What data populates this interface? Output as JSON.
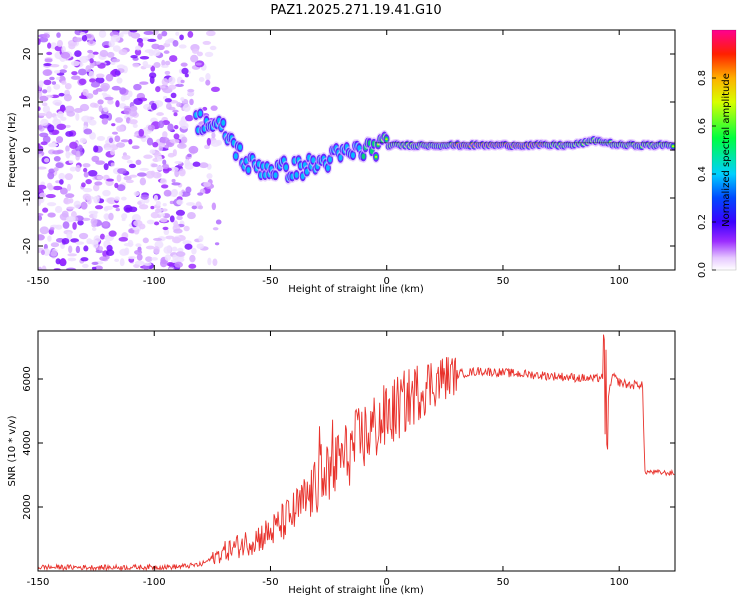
{
  "title": "PAZ1.2025.271.19.41.G10",
  "chart_data": [
    {
      "type": "heatmap",
      "name": "spectrogram",
      "xlabel": "Height of straight line (km)",
      "ylabel": "Frequency (Hz)",
      "xlim": [
        -150,
        124
      ],
      "ylim": [
        -25,
        25
      ],
      "xticks": [
        -150,
        -100,
        -50,
        0,
        50,
        100
      ],
      "yticks": [
        -20,
        -10,
        0,
        10,
        20
      ],
      "colorbar": {
        "label": "Normalized spectral amplitude",
        "range": [
          0,
          1
        ],
        "ticks": [
          0.0,
          0.2,
          0.4,
          0.6,
          0.8
        ],
        "colormap": "rainbow",
        "stops": [
          "#ffffff",
          "#e6c8ff",
          "#9b2cff",
          "#3a00ff",
          "#0048ff",
          "#00d0ff",
          "#00ff40",
          "#d8ff00",
          "#ffb000",
          "#ff2000",
          "#ff0090"
        ]
      },
      "ridge": {
        "description_points_x": [
          -80,
          -70,
          -60,
          -50,
          -40,
          -30,
          -20,
          -10,
          0,
          10,
          20,
          30,
          40,
          50,
          60,
          70,
          80,
          90,
          100,
          110,
          124
        ],
        "description_points_y": [
          6,
          4,
          -3,
          -4,
          -4,
          -3,
          -1,
          0,
          1,
          1,
          1,
          1,
          1,
          1,
          1,
          1,
          1,
          2,
          1,
          1,
          1
        ]
      }
    },
    {
      "type": "line",
      "name": "snr",
      "xlabel": "Height of straight line (km)",
      "ylabel": "SNR (10 * v/v)",
      "xlim": [
        -150,
        124
      ],
      "ylim": [
        0,
        7500
      ],
      "xticks": [
        -150,
        -100,
        -50,
        0,
        50,
        100
      ],
      "yticks": [
        2000,
        4000,
        6000
      ],
      "series": [
        {
          "name": "SNR",
          "color": "#e8322c",
          "x": [
            -150,
            -120,
            -90,
            -80,
            -75,
            -70,
            -60,
            -50,
            -45,
            -40,
            -35,
            -30,
            -25,
            -20,
            -15,
            -10,
            -5,
            0,
            5,
            10,
            15,
            20,
            25,
            30,
            35,
            40,
            50,
            60,
            70,
            80,
            90,
            93,
            95,
            97,
            100,
            105,
            110,
            111,
            112,
            124
          ],
          "y": [
            120,
            110,
            130,
            200,
            400,
            600,
            900,
            1200,
            1500,
            1800,
            2200,
            2600,
            3000,
            3400,
            3800,
            4200,
            4500,
            4800,
            5100,
            5400,
            5700,
            5900,
            6050,
            6150,
            6200,
            6250,
            6200,
            6150,
            6100,
            6050,
            6000,
            6100,
            5200,
            6100,
            5900,
            5800,
            5850,
            3100,
            3100,
            3050
          ]
        }
      ]
    }
  ]
}
